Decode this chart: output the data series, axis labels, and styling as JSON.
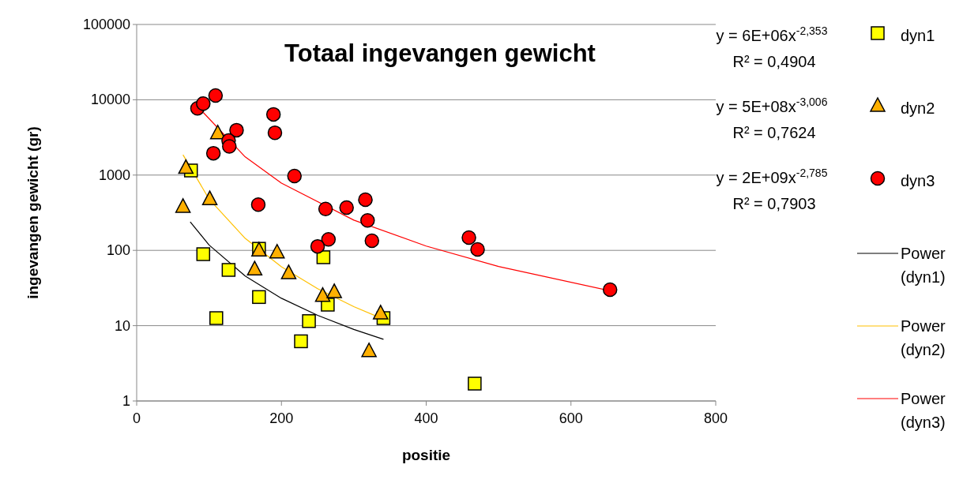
{
  "chart_data": {
    "type": "scatter",
    "title": "Totaal ingevangen gewicht",
    "xlabel": "positie",
    "ylabel": "ingevangen gewicht (gr)",
    "xlim": [
      0,
      800
    ],
    "xticks": [
      0,
      200,
      400,
      600,
      800
    ],
    "ylim": [
      1,
      100000
    ],
    "yticks": [
      1,
      10,
      100,
      1000,
      10000,
      100000
    ],
    "log": "y",
    "grid": "y",
    "legend": "right",
    "annotations": [
      "y = 6E+06x$^{-2,353}$",
      "R² = 0,4904",
      "y = 5E+08x$^{-3,006}$",
      "R² = 0,7624",
      "y = 2E+09x$^{-2,785}$",
      "R² = 0,7903"
    ],
    "series": [
      {
        "name": "dyn1",
        "marker": "square",
        "color": "#ffff00",
        "x": [
          75,
          92,
          110,
          127,
          169,
          169,
          227,
          238,
          258,
          264,
          341,
          467
        ],
        "values": [
          1150,
          89,
          12.6,
          55,
          24,
          105,
          6.2,
          11.5,
          81,
          19,
          12.6,
          1.7
        ]
      },
      {
        "name": "dyn2",
        "marker": "triangle",
        "color": "#ffb000",
        "x": [
          68,
          64,
          101,
          112,
          169,
          194,
          163,
          210,
          257,
          273,
          321,
          337
        ],
        "values": [
          1250,
          380,
          480,
          3600,
          100,
          94,
          56,
          50,
          25,
          28,
          4.6,
          14.6
        ]
      },
      {
        "name": "dyn3",
        "marker": "circle",
        "color": "#ff0000",
        "x": [
          109,
          84,
          92,
          138,
          127,
          128,
          106,
          189,
          191,
          218,
          168,
          261,
          290,
          316,
          319,
          325,
          265,
          250,
          459,
          471,
          654
        ],
        "values": [
          11400,
          7700,
          8900,
          3950,
          2870,
          2400,
          1950,
          6400,
          3650,
          970,
          405,
          355,
          370,
          470,
          250,
          134,
          140,
          113,
          148,
          103,
          30
        ]
      },
      {
        "name": "Power (dyn1)",
        "type": "line",
        "marker": "none",
        "color": "#000000",
        "x": [
          74,
          100,
          150,
          200,
          250,
          300,
          341
        ],
        "values": [
          239,
          118,
          45.5,
          23.1,
          13.7,
          8.9,
          6.6
        ]
      },
      {
        "name": "Power (dyn2)",
        "type": "line",
        "marker": "none",
        "color": "#ffc000",
        "x": [
          64,
          100,
          150,
          200,
          250,
          300,
          341
        ],
        "values": [
          1860,
          480,
          144,
          60.5,
          31,
          17.9,
          12.2
        ]
      },
      {
        "name": "Power (dyn3)",
        "type": "line",
        "marker": "none",
        "color": "#ff0000",
        "x": [
          92,
          150,
          200,
          300,
          400,
          500,
          654
        ],
        "values": [
          6780,
          1740,
          782,
          252,
          114,
          61,
          29
        ]
      }
    ]
  }
}
